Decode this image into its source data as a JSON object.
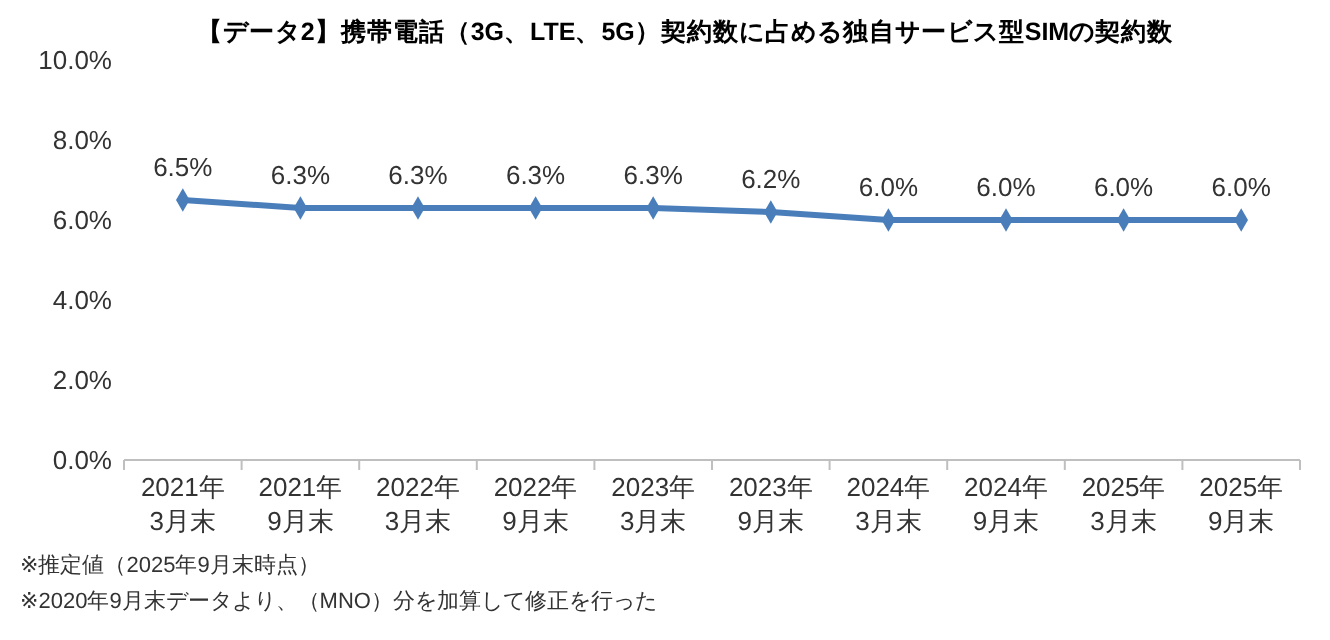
{
  "chart_data": {
    "type": "line",
    "title": "【データ2】携帯電話（3G、LTE、5G）契約数に占める独自サービス型SIMの契約数",
    "categories": [
      "2021年\n3月末",
      "2021年\n9月末",
      "2022年\n3月末",
      "2022年\n9月末",
      "2023年\n3月末",
      "2023年\n9月末",
      "2024年\n3月末",
      "2024年\n9月末",
      "2025年\n3月末",
      "2025年\n9月末"
    ],
    "series": [
      {
        "color": "#4a7ebb",
        "values": [
          6.5,
          6.3,
          6.3,
          6.3,
          6.3,
          6.2,
          6.0,
          6.0,
          6.0,
          6.0
        ]
      }
    ],
    "value_labels": [
      "6.5%",
      "6.3%",
      "6.3%",
      "6.3%",
      "6.3%",
      "6.2%",
      "6.0%",
      "6.0%",
      "6.0%",
      "6.0%"
    ],
    "ylim": [
      0,
      10
    ],
    "yticks": [
      {
        "value": 0,
        "label": "0.0%"
      },
      {
        "value": 2,
        "label": "2.0%"
      },
      {
        "value": 4,
        "label": "4.0%"
      },
      {
        "value": 6,
        "label": "6.0%"
      },
      {
        "value": 8,
        "label": "8.0%"
      },
      {
        "value": 10,
        "label": "10.0%"
      }
    ],
    "marker": "diamond",
    "annotations": [
      "※推定値（2025年9月末時点）",
      "※2020年9月末データより、（MNO）分を加算して修正を行った"
    ]
  }
}
